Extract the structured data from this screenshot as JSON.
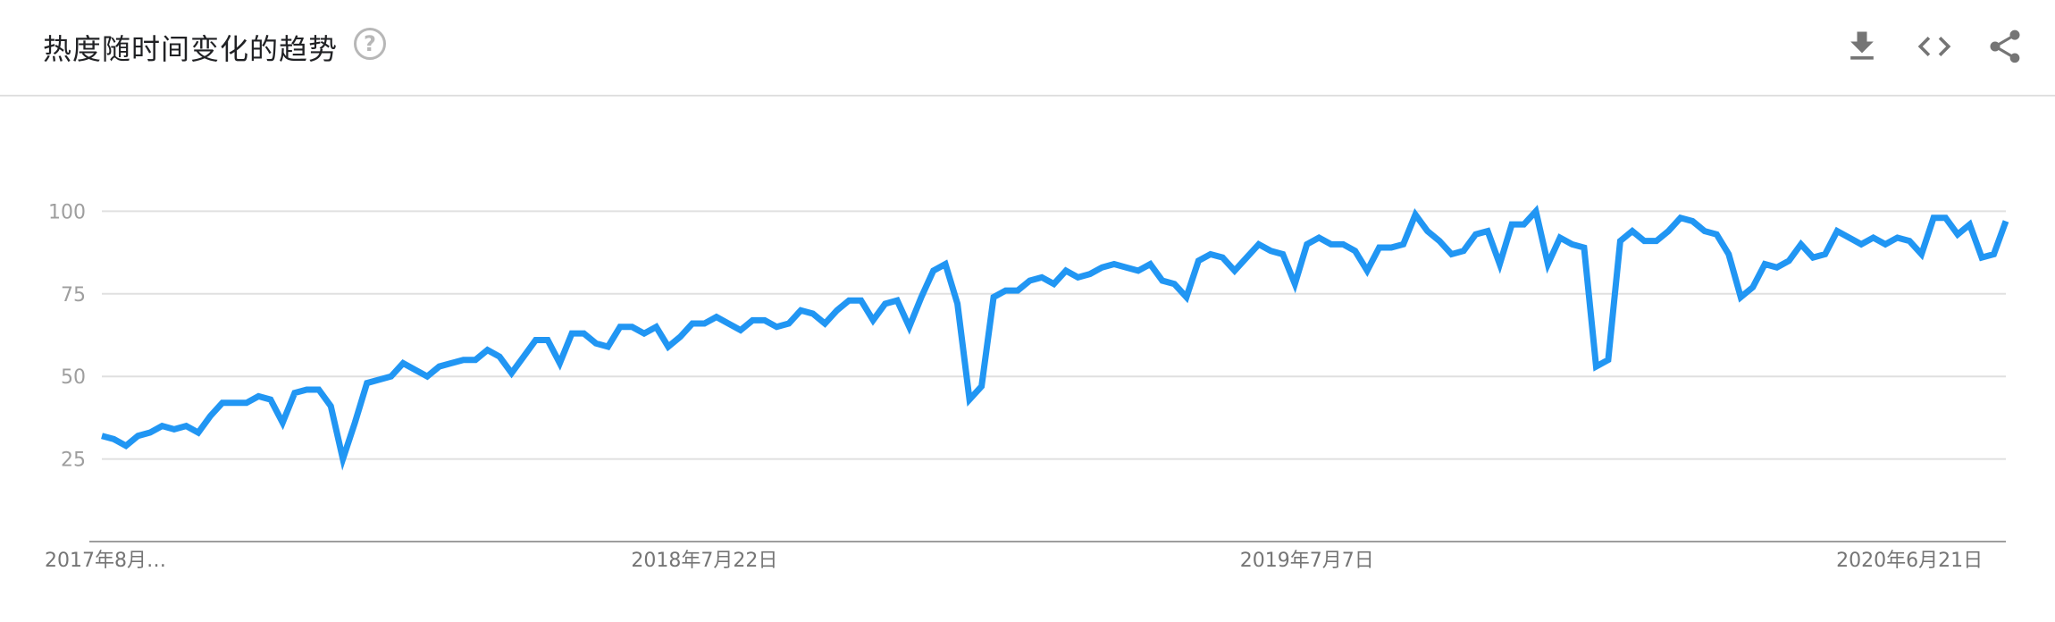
{
  "header": {
    "title": "热度随时间变化的趋势",
    "help_icon": "help-circle-icon",
    "toolbar": {
      "download_icon": "download-icon",
      "embed_icon": "code-embed-icon",
      "share_icon": "share-icon"
    }
  },
  "colors": {
    "series": "#2196f3",
    "grid": "#e0e0e0",
    "axis": "#9e9e9e"
  },
  "chart_data": {
    "type": "line",
    "title": "",
    "xlabel": "",
    "ylabel": "",
    "ylim": [
      0,
      125
    ],
    "yticks": [
      25,
      50,
      75,
      100
    ],
    "grid": true,
    "x_tick_labels": [
      "2017年8月…",
      "2018年7月22日",
      "2019年7月7日",
      "2020年6月21日"
    ],
    "x_tick_indices": [
      0,
      50,
      100,
      150
    ],
    "series": [
      {
        "values": [
          32,
          31,
          29,
          32,
          33,
          35,
          34,
          35,
          33,
          38,
          42,
          42,
          42,
          44,
          43,
          36,
          45,
          46,
          46,
          41,
          25,
          36,
          48,
          49,
          50,
          54,
          52,
          50,
          53,
          54,
          55,
          55,
          58,
          56,
          51,
          56,
          61,
          61,
          54,
          63,
          63,
          60,
          59,
          65,
          65,
          63,
          65,
          59,
          62,
          66,
          66,
          68,
          66,
          64,
          67,
          67,
          65,
          66,
          70,
          69,
          66,
          70,
          73,
          73,
          67,
          72,
          73,
          65,
          74,
          82,
          84,
          72,
          43,
          47,
          74,
          76,
          76,
          79,
          80,
          78,
          82,
          80,
          81,
          83,
          84,
          83,
          82,
          84,
          79,
          78,
          74,
          85,
          87,
          86,
          82,
          86,
          90,
          88,
          87,
          78,
          90,
          92,
          90,
          90,
          88,
          82,
          89,
          89,
          90,
          99,
          94,
          91,
          87,
          88,
          93,
          94,
          84,
          96,
          96,
          100,
          84,
          92,
          90,
          89,
          53,
          55,
          91,
          94,
          91,
          91,
          94,
          98,
          97,
          94,
          93,
          87,
          74,
          77,
          84,
          83,
          85,
          90,
          86,
          87,
          94,
          92,
          90,
          92,
          90,
          92,
          91,
          87,
          98,
          98,
          93,
          96,
          86,
          87,
          97
        ]
      }
    ]
  }
}
